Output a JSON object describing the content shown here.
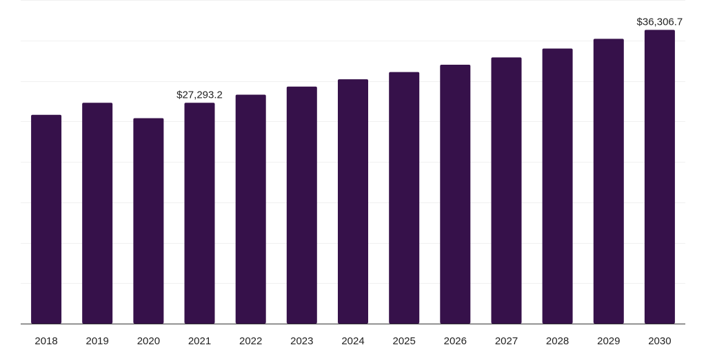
{
  "chart_data": {
    "type": "bar",
    "title": "",
    "xlabel": "",
    "ylabel": "",
    "categories": [
      "2018",
      "2019",
      "2020",
      "2021",
      "2022",
      "2023",
      "2024",
      "2025",
      "2026",
      "2027",
      "2028",
      "2029",
      "2030"
    ],
    "values": [
      25800,
      27300,
      25400,
      27293.2,
      28300,
      29300,
      30200,
      31100,
      32000,
      32900,
      34000,
      35200,
      36306.7
    ],
    "data_labels": [
      {
        "category": "2021",
        "text": "$27,293.2"
      },
      {
        "category": "2030",
        "text": "$36,306.7"
      }
    ],
    "ylim": [
      0,
      40000
    ],
    "gridlines": [
      5000,
      10000,
      15000,
      20000,
      25000,
      30000,
      35000,
      40000
    ],
    "grid": true,
    "legend": "none",
    "colors": {
      "bar": "#36114a",
      "grid": "#f0f0f0",
      "axis": "#333333",
      "text": "#222222"
    }
  }
}
